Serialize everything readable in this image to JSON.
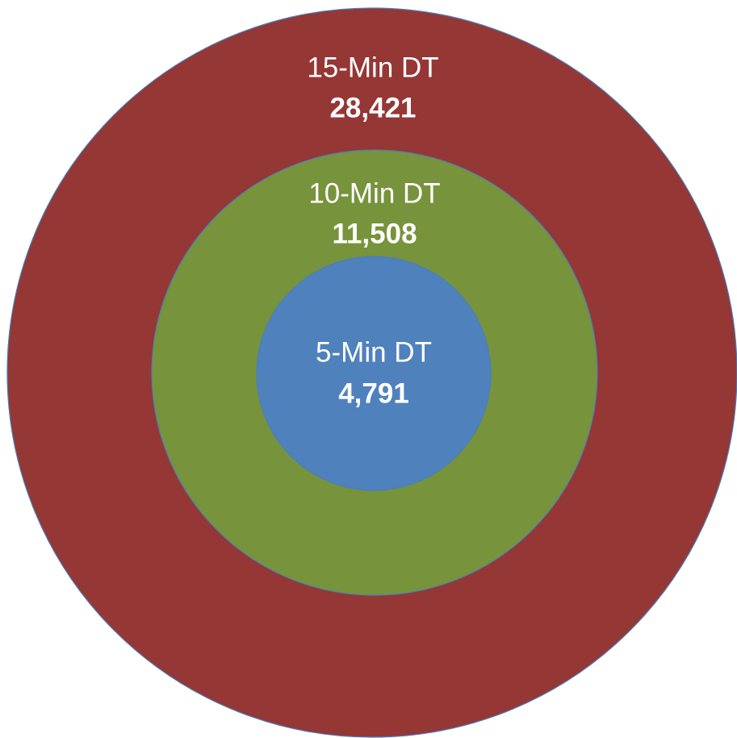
{
  "nodes": [
    {
      "label": "15-Min DT",
      "value": "28,421"
    },
    {
      "label": "10-Min DT",
      "value": "11,508"
    },
    {
      "label": "5-Min DT",
      "value": "4,791"
    }
  ]
}
